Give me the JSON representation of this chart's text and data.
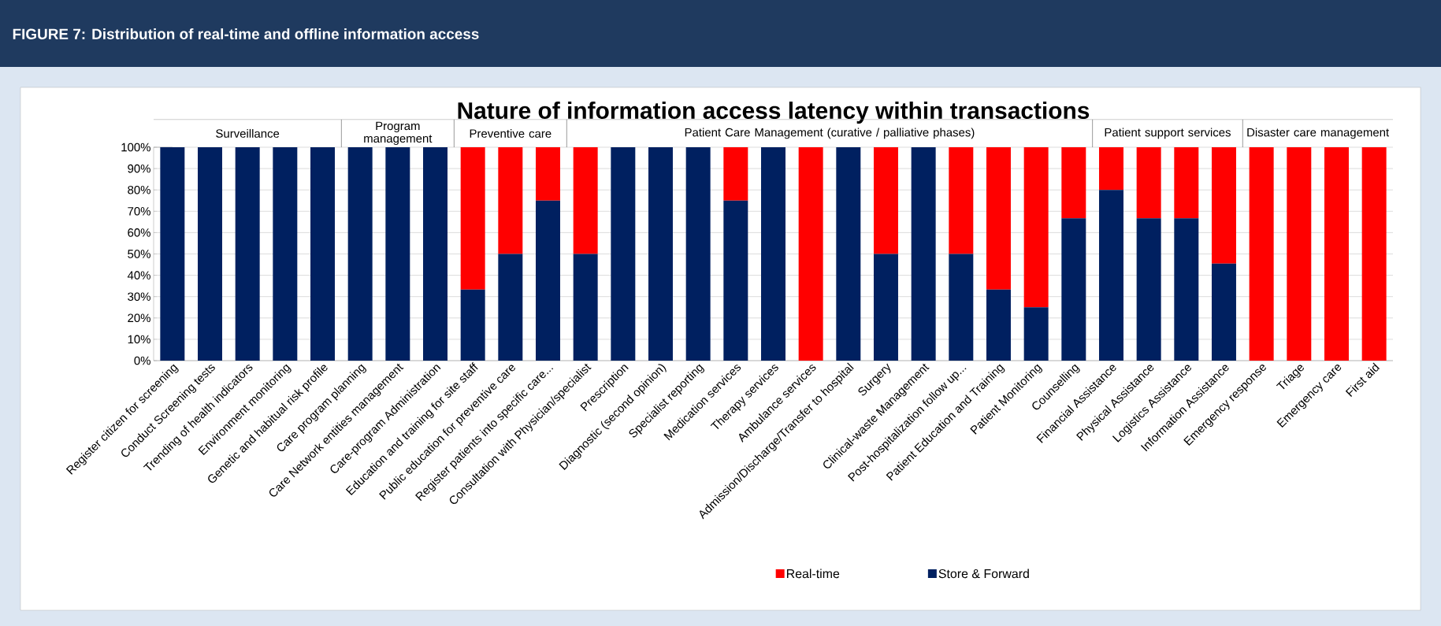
{
  "chart_data": {
    "type": "bar",
    "stacked": true,
    "title": "Nature of information access latency within transactions",
    "categories": [
      "Register citizen for screening",
      "Conduct Screening tests",
      "Trending of health indicators",
      "Environment monitoring",
      "Genetic and habitual risk profile",
      "Care program planning",
      "Care Network entities management",
      "Care-program Administration",
      "Education and training for site staff",
      "Public education for preventive care",
      "Register patients into specific care...",
      "Consultation with Physician/specialist",
      "Prescription",
      "Diagnostic (second opinion)",
      "Specialist reporting",
      "Medication services",
      "Therapy  services",
      "Ambulance services",
      "Admission/Discharge/Transfer to hospital",
      "Surgery",
      "Clinical-waste Management",
      "Post-hospitalization follow up...",
      "Patient Education and Training",
      "Patient Monitoring",
      "Counselling",
      "Financial Assistance",
      "Physical Assistance",
      "Logistics Assistance",
      "Information Assistance",
      "Emergency response",
      "Triage",
      "Emergency care",
      "First aid"
    ],
    "series": [
      {
        "name": "Store & Forward",
        "color": "#002060",
        "values": [
          100,
          100,
          100,
          100,
          100,
          100,
          100,
          100,
          33.3,
          50,
          75,
          50,
          100,
          100,
          100,
          75,
          100,
          0,
          100,
          50,
          100,
          50,
          33.3,
          25,
          66.7,
          80,
          66.7,
          66.7,
          45.5,
          0,
          0,
          0,
          0
        ]
      },
      {
        "name": "Real-time",
        "color": "#ff0000",
        "values": [
          0,
          0,
          0,
          0,
          0,
          0,
          0,
          0,
          66.7,
          50,
          25,
          50,
          0,
          0,
          0,
          25,
          0,
          100,
          0,
          50,
          0,
          50,
          66.7,
          75,
          33.3,
          20,
          33.3,
          33.3,
          54.5,
          100,
          100,
          100,
          100
        ]
      }
    ],
    "ylim": [
      0,
      100
    ],
    "yticks": [
      {
        "value": 0,
        "label": "0%"
      },
      {
        "value": 10,
        "label": "10%"
      },
      {
        "value": 20,
        "label": "20%"
      },
      {
        "value": 30,
        "label": "30%"
      },
      {
        "value": 40,
        "label": "40%"
      },
      {
        "value": 50,
        "label": "50%"
      },
      {
        "value": 60,
        "label": "60%"
      },
      {
        "value": 70,
        "label": "70%"
      },
      {
        "value": 80,
        "label": "80%"
      },
      {
        "value": 90,
        "label": "90%"
      },
      {
        "value": 100,
        "label": "100%"
      }
    ],
    "grid": "y",
    "legend": "bottom",
    "annotations": [
      "FIGURE 7: Distribution of real-time and offline information access",
      "Surveillance",
      "Program management",
      "Preventive care",
      "Patient Care Management (curative / palliative phases)",
      "Patient support services",
      "Disaster care management"
    ]
  }
}
